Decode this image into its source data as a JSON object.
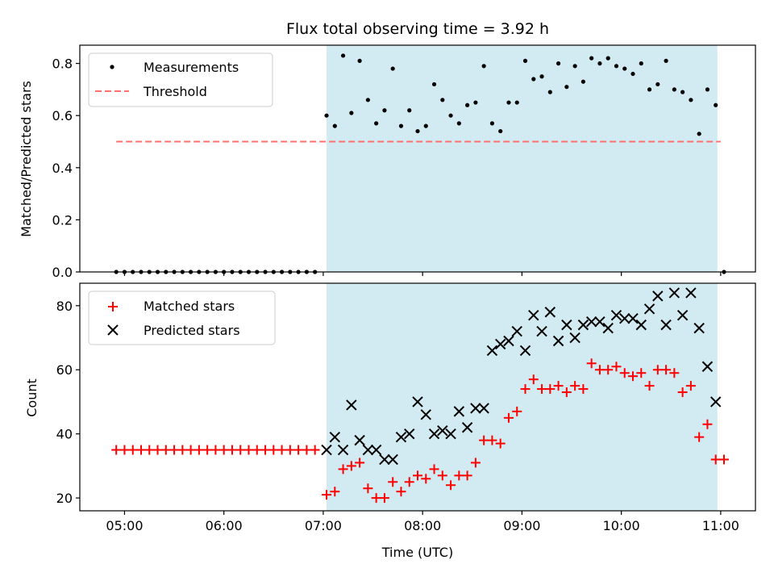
{
  "chart_data": [
    {
      "type": "scatter",
      "title": "Flux total observing time = 3.92 h",
      "xlabel": "",
      "ylabel": "Matched/Predicted stars",
      "ylim": [
        0,
        0.87
      ],
      "yticks": [
        0.0,
        0.2,
        0.4,
        0.6,
        0.8
      ],
      "ytick_labels": [
        "0.0",
        "0.2",
        "0.4",
        "0.6",
        "0.8"
      ],
      "xlim": [
        "04:33",
        "11:21"
      ],
      "legend_placement": "upper-left",
      "shaded_span": {
        "x": [
          "07:02",
          "10:58"
        ],
        "color": "#add8e6"
      },
      "series": [
        {
          "name": "Measurements",
          "marker": "dot",
          "color": "#000000",
          "x": [
            "04:55",
            "05:00",
            "05:05",
            "05:10",
            "05:15",
            "05:20",
            "05:25",
            "05:30",
            "05:35",
            "05:40",
            "05:45",
            "05:50",
            "05:55",
            "06:00",
            "06:05",
            "06:10",
            "06:15",
            "06:20",
            "06:25",
            "06:30",
            "06:35",
            "06:40",
            "06:45",
            "06:50",
            "06:55",
            "07:02",
            "07:07",
            "07:12",
            "07:17",
            "07:22",
            "07:27",
            "07:32",
            "07:37",
            "07:42",
            "07:47",
            "07:52",
            "07:57",
            "08:02",
            "08:07",
            "08:12",
            "08:17",
            "08:22",
            "08:27",
            "08:32",
            "08:37",
            "08:42",
            "08:47",
            "08:52",
            "08:57",
            "09:02",
            "09:07",
            "09:12",
            "09:17",
            "09:22",
            "09:27",
            "09:32",
            "09:37",
            "09:42",
            "09:47",
            "09:52",
            "09:57",
            "10:02",
            "10:07",
            "10:12",
            "10:17",
            "10:22",
            "10:27",
            "10:32",
            "10:37",
            "10:42",
            "10:47",
            "10:52",
            "10:57",
            "11:02"
          ],
          "y": [
            0,
            0,
            0,
            0,
            0,
            0,
            0,
            0,
            0,
            0,
            0,
            0,
            0,
            0,
            0,
            0,
            0,
            0,
            0,
            0,
            0,
            0,
            0,
            0,
            0,
            0.6,
            0.56,
            0.83,
            0.61,
            0.81,
            0.66,
            0.57,
            0.62,
            0.78,
            0.56,
            0.62,
            0.54,
            0.56,
            0.72,
            0.66,
            0.6,
            0.57,
            0.64,
            0.65,
            0.79,
            0.57,
            0.54,
            0.65,
            0.65,
            0.81,
            0.74,
            0.75,
            0.69,
            0.8,
            0.71,
            0.79,
            0.73,
            0.82,
            0.8,
            0.82,
            0.79,
            0.78,
            0.76,
            0.8,
            0.7,
            0.72,
            0.81,
            0.7,
            0.69,
            0.66,
            0.53,
            0.7,
            0.64,
            0
          ]
        },
        {
          "name": "Threshold",
          "marker": "dashed-line",
          "color": "#ff7070",
          "x": [
            "04:55",
            "11:00"
          ],
          "y": [
            0.5,
            0.5
          ]
        }
      ]
    },
    {
      "type": "scatter",
      "title": "",
      "xlabel": "Time (UTC)",
      "ylabel": "Count",
      "ylim": [
        16,
        87
      ],
      "yticks": [
        20,
        40,
        60,
        80
      ],
      "ytick_labels": [
        "20",
        "40",
        "60",
        "80"
      ],
      "xlim": [
        "04:33",
        "11:21"
      ],
      "xticks": [
        "05:00",
        "06:00",
        "07:00",
        "08:00",
        "09:00",
        "10:00",
        "11:00"
      ],
      "xtick_labels": [
        "05:00",
        "06:00",
        "07:00",
        "08:00",
        "09:00",
        "10:00",
        "11:00"
      ],
      "legend_placement": "upper-left",
      "shaded_span": {
        "x": [
          "07:02",
          "10:58"
        ],
        "color": "#add8e6"
      },
      "series": [
        {
          "name": "Matched stars",
          "marker": "plus",
          "color": "#ff0000",
          "x": [
            "04:55",
            "05:00",
            "05:05",
            "05:10",
            "05:15",
            "05:20",
            "05:25",
            "05:30",
            "05:35",
            "05:40",
            "05:45",
            "05:50",
            "05:55",
            "06:00",
            "06:05",
            "06:10",
            "06:15",
            "06:20",
            "06:25",
            "06:30",
            "06:35",
            "06:40",
            "06:45",
            "06:50",
            "06:55",
            "07:02",
            "07:07",
            "07:12",
            "07:17",
            "07:22",
            "07:27",
            "07:32",
            "07:37",
            "07:42",
            "07:47",
            "07:52",
            "07:57",
            "08:02",
            "08:07",
            "08:12",
            "08:17",
            "08:22",
            "08:27",
            "08:32",
            "08:37",
            "08:42",
            "08:47",
            "08:52",
            "08:57",
            "09:02",
            "09:07",
            "09:12",
            "09:17",
            "09:22",
            "09:27",
            "09:32",
            "09:37",
            "09:42",
            "09:47",
            "09:52",
            "09:57",
            "10:02",
            "10:07",
            "10:12",
            "10:17",
            "10:22",
            "10:27",
            "10:32",
            "10:37",
            "10:42",
            "10:47",
            "10:52",
            "10:57",
            "11:02"
          ],
          "y": [
            35,
            35,
            35,
            35,
            35,
            35,
            35,
            35,
            35,
            35,
            35,
            35,
            35,
            35,
            35,
            35,
            35,
            35,
            35,
            35,
            35,
            35,
            35,
            35,
            35,
            21,
            22,
            29,
            30,
            31,
            23,
            20,
            20,
            25,
            22,
            25,
            27,
            26,
            29,
            27,
            24,
            27,
            27,
            31,
            38,
            38,
            37,
            45,
            47,
            54,
            57,
            54,
            54,
            55,
            53,
            55,
            54,
            62,
            60,
            60,
            61,
            59,
            58,
            59,
            55,
            60,
            60,
            59,
            53,
            55,
            39,
            43,
            32,
            32
          ]
        },
        {
          "name": "Predicted stars",
          "marker": "x",
          "color": "#000000",
          "x": [
            "07:02",
            "07:07",
            "07:12",
            "07:17",
            "07:22",
            "07:27",
            "07:32",
            "07:37",
            "07:42",
            "07:47",
            "07:52",
            "07:57",
            "08:02",
            "08:07",
            "08:12",
            "08:17",
            "08:22",
            "08:27",
            "08:32",
            "08:37",
            "08:42",
            "08:47",
            "08:52",
            "08:57",
            "09:02",
            "09:07",
            "09:12",
            "09:17",
            "09:22",
            "09:27",
            "09:32",
            "09:37",
            "09:42",
            "09:47",
            "09:52",
            "09:57",
            "10:02",
            "10:07",
            "10:12",
            "10:17",
            "10:22",
            "10:27",
            "10:32",
            "10:37",
            "10:42",
            "10:47",
            "10:52",
            "10:57"
          ],
          "y": [
            35,
            39,
            35,
            49,
            38,
            35,
            35,
            32,
            32,
            39,
            40,
            50,
            46,
            40,
            41,
            40,
            47,
            42,
            48,
            48,
            66,
            68,
            69,
            72,
            66,
            77,
            72,
            78,
            69,
            74,
            70,
            74,
            75,
            75,
            73,
            77,
            76,
            76,
            74,
            79,
            83,
            74,
            84,
            77,
            84,
            73,
            61,
            50
          ]
        }
      ]
    }
  ]
}
